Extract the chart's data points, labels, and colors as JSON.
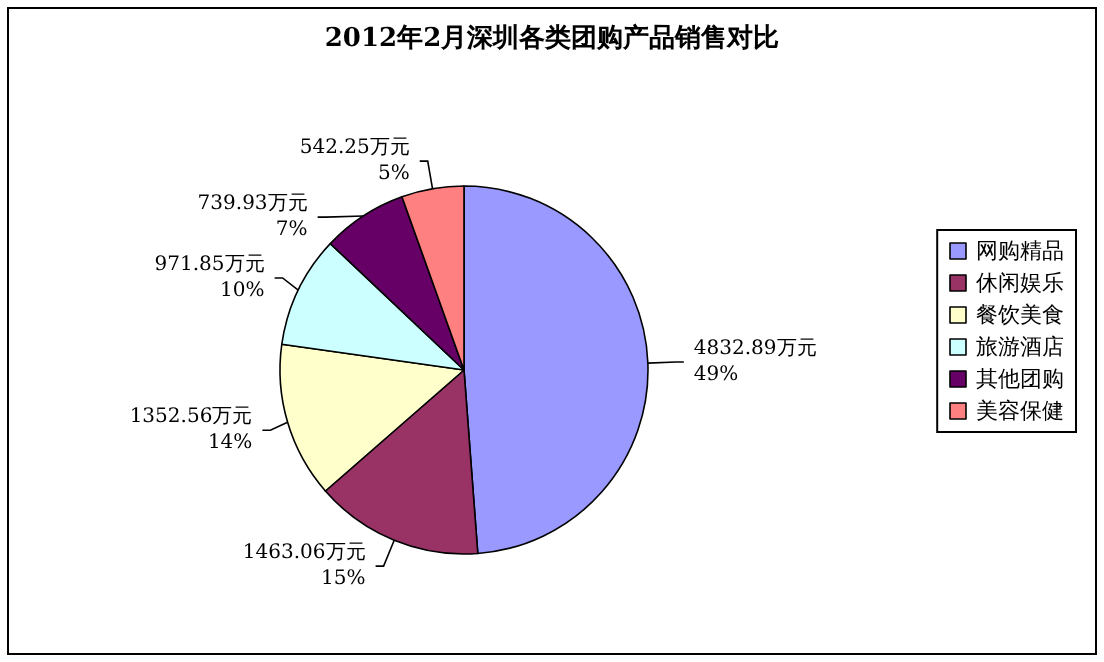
{
  "chart_data": {
    "type": "pie",
    "title": "2012年2月深圳各类团购产品销售对比",
    "categories": [
      "网购精品",
      "休闲娱乐",
      "餐饮美食",
      "旅游酒店",
      "其他团购",
      "美容保健"
    ],
    "values": [
      4832.89,
      1463.06,
      1352.56,
      971.85,
      739.93,
      542.25
    ],
    "value_labels": [
      "4832.89万元\n49%",
      "1463.06万元\n15%",
      "1352.56万元\n14%",
      "971.85万元\n10%",
      "739.93万元\n7%",
      "542.25万元\n5%"
    ],
    "colors": [
      "#9999ff",
      "#993366",
      "#ffffcc",
      "#ccffff",
      "#660066",
      "#ff8080"
    ],
    "legend": "right"
  }
}
